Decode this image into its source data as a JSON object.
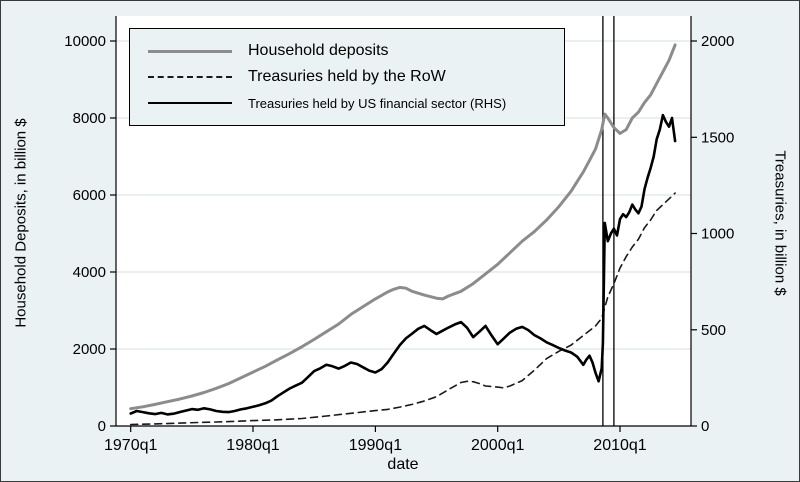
{
  "figure": {
    "background": "#eaf2f3",
    "border_color": "#3a3a3a"
  },
  "chart_data": {
    "type": "line",
    "title": "",
    "xlabel": "date",
    "ylabel_left": "Household Deposits, in billion $",
    "ylabel_right": "Treasuries, in billion $",
    "background": "#eaf2f3",
    "plot_background": "#ffffff",
    "grid_color": "#d4e2e5",
    "grid": "horizontal",
    "legend_position": "top-left",
    "xlim": [
      1968.8,
      2015.8
    ],
    "ylim_left": [
      0,
      10000
    ],
    "ylim_right": [
      0,
      2000
    ],
    "x_ticks": [
      {
        "v": 1970,
        "label": "1970q1"
      },
      {
        "v": 1980,
        "label": "1980q1"
      },
      {
        "v": 1990,
        "label": "1990q1"
      },
      {
        "v": 2000,
        "label": "2000q1"
      },
      {
        "v": 2010,
        "label": "2010q1"
      }
    ],
    "yticks_left": [
      0,
      2000,
      4000,
      6000,
      8000,
      10000
    ],
    "yticks_right": [
      0,
      500,
      1000,
      1500,
      2000
    ],
    "vlines": [
      2008.6,
      2009.5
    ],
    "vline_color": "#000000",
    "series": [
      {
        "name": "Household deposits",
        "axis": "left",
        "style": "solid",
        "color": "#8c8c8c",
        "width": 3,
        "points": [
          [
            1970,
            450
          ],
          [
            1971,
            500
          ],
          [
            1972,
            560
          ],
          [
            1973,
            630
          ],
          [
            1974,
            700
          ],
          [
            1975,
            780
          ],
          [
            1976,
            870
          ],
          [
            1977,
            980
          ],
          [
            1978,
            1100
          ],
          [
            1979,
            1250
          ],
          [
            1980,
            1400
          ],
          [
            1981,
            1550
          ],
          [
            1982,
            1720
          ],
          [
            1983,
            1880
          ],
          [
            1984,
            2060
          ],
          [
            1985,
            2250
          ],
          [
            1986,
            2450
          ],
          [
            1987,
            2650
          ],
          [
            1988,
            2900
          ],
          [
            1989,
            3100
          ],
          [
            1990,
            3300
          ],
          [
            1991,
            3480
          ],
          [
            1991.5,
            3550
          ],
          [
            1992,
            3600
          ],
          [
            1992.5,
            3580
          ],
          [
            1993,
            3500
          ],
          [
            1994,
            3400
          ],
          [
            1995,
            3320
          ],
          [
            1995.5,
            3300
          ],
          [
            1996,
            3380
          ],
          [
            1997,
            3500
          ],
          [
            1998,
            3700
          ],
          [
            1999,
            3950
          ],
          [
            2000,
            4200
          ],
          [
            2001,
            4500
          ],
          [
            2002,
            4800
          ],
          [
            2003,
            5050
          ],
          [
            2004,
            5350
          ],
          [
            2005,
            5700
          ],
          [
            2006,
            6100
          ],
          [
            2007,
            6600
          ],
          [
            2007.5,
            6900
          ],
          [
            2008,
            7200
          ],
          [
            2008.5,
            7700
          ],
          [
            2008.75,
            8100
          ],
          [
            2009,
            8000
          ],
          [
            2009.5,
            7750
          ],
          [
            2010,
            7600
          ],
          [
            2010.5,
            7700
          ],
          [
            2011,
            8000
          ],
          [
            2011.5,
            8150
          ],
          [
            2012,
            8400
          ],
          [
            2012.5,
            8600
          ],
          [
            2013,
            8900
          ],
          [
            2013.5,
            9200
          ],
          [
            2014,
            9500
          ],
          [
            2014.5,
            9900
          ]
        ]
      },
      {
        "name": "Treasuries held by the RoW",
        "axis": "left",
        "style": "dashed",
        "color": "#1a1a1a",
        "width": 1.6,
        "points": [
          [
            1970,
            40
          ],
          [
            1972,
            55
          ],
          [
            1974,
            75
          ],
          [
            1976,
            95
          ],
          [
            1978,
            115
          ],
          [
            1980,
            140
          ],
          [
            1982,
            160
          ],
          [
            1984,
            195
          ],
          [
            1986,
            260
          ],
          [
            1988,
            330
          ],
          [
            1990,
            400
          ],
          [
            1991,
            430
          ],
          [
            1992,
            490
          ],
          [
            1993,
            560
          ],
          [
            1994,
            650
          ],
          [
            1995,
            760
          ],
          [
            1996,
            950
          ],
          [
            1997,
            1130
          ],
          [
            1997.5,
            1160
          ],
          [
            1998,
            1150
          ],
          [
            1998.5,
            1100
          ],
          [
            1999,
            1040
          ],
          [
            2000,
            1010
          ],
          [
            2000.5,
            990
          ],
          [
            2001,
            1040
          ],
          [
            2002,
            1180
          ],
          [
            2003,
            1450
          ],
          [
            2004,
            1750
          ],
          [
            2005,
            1940
          ],
          [
            2006,
            2100
          ],
          [
            2007,
            2350
          ],
          [
            2008,
            2600
          ],
          [
            2008.5,
            2800
          ],
          [
            2009,
            3350
          ],
          [
            2009.5,
            3700
          ],
          [
            2010,
            4100
          ],
          [
            2010.5,
            4400
          ],
          [
            2011,
            4650
          ],
          [
            2011.5,
            4850
          ],
          [
            2012,
            5150
          ],
          [
            2012.5,
            5350
          ],
          [
            2013,
            5600
          ],
          [
            2013.5,
            5750
          ],
          [
            2014,
            5900
          ],
          [
            2014.5,
            6050
          ]
        ]
      },
      {
        "name": "Treasuries held by US financial sector (RHS)",
        "axis": "right",
        "style": "solid",
        "color": "#000000",
        "width": 2.6,
        "points": [
          [
            1970,
            65
          ],
          [
            1970.5,
            78
          ],
          [
            1971,
            72
          ],
          [
            1971.5,
            66
          ],
          [
            1972,
            62
          ],
          [
            1972.5,
            68
          ],
          [
            1973,
            60
          ],
          [
            1973.5,
            64
          ],
          [
            1974,
            72
          ],
          [
            1974.5,
            80
          ],
          [
            1975,
            88
          ],
          [
            1975.5,
            84
          ],
          [
            1976,
            92
          ],
          [
            1976.5,
            86
          ],
          [
            1977,
            78
          ],
          [
            1977.5,
            74
          ],
          [
            1978,
            72
          ],
          [
            1978.5,
            78
          ],
          [
            1979,
            86
          ],
          [
            1979.5,
            92
          ],
          [
            1980,
            100
          ],
          [
            1980.5,
            108
          ],
          [
            1981,
            118
          ],
          [
            1981.5,
            132
          ],
          [
            1982,
            155
          ],
          [
            1982.5,
            175
          ],
          [
            1983,
            195
          ],
          [
            1983.5,
            210
          ],
          [
            1984,
            225
          ],
          [
            1984.5,
            255
          ],
          [
            1985,
            285
          ],
          [
            1985.5,
            300
          ],
          [
            1986,
            318
          ],
          [
            1986.5,
            310
          ],
          [
            1987,
            298
          ],
          [
            1987.5,
            312
          ],
          [
            1988,
            330
          ],
          [
            1988.5,
            322
          ],
          [
            1989,
            305
          ],
          [
            1989.5,
            288
          ],
          [
            1990,
            278
          ],
          [
            1990.5,
            295
          ],
          [
            1991,
            330
          ],
          [
            1991.5,
            375
          ],
          [
            1992,
            420
          ],
          [
            1992.5,
            455
          ],
          [
            1993,
            480
          ],
          [
            1993.5,
            505
          ],
          [
            1994,
            520
          ],
          [
            1994.5,
            498
          ],
          [
            1995,
            478
          ],
          [
            1995.5,
            495
          ],
          [
            1996,
            512
          ],
          [
            1996.5,
            528
          ],
          [
            1997,
            540
          ],
          [
            1997.5,
            510
          ],
          [
            1998,
            462
          ],
          [
            1998.5,
            490
          ],
          [
            1999,
            520
          ],
          [
            1999.5,
            470
          ],
          [
            2000,
            425
          ],
          [
            2000.5,
            455
          ],
          [
            2001,
            485
          ],
          [
            2001.5,
            505
          ],
          [
            2002,
            515
          ],
          [
            2002.5,
            498
          ],
          [
            2003,
            472
          ],
          [
            2003.5,
            455
          ],
          [
            2004,
            435
          ],
          [
            2004.5,
            420
          ],
          [
            2005,
            405
          ],
          [
            2005.5,
            392
          ],
          [
            2006,
            382
          ],
          [
            2006.5,
            360
          ],
          [
            2007,
            318
          ],
          [
            2007.25,
            345
          ],
          [
            2007.5,
            365
          ],
          [
            2007.75,
            330
          ],
          [
            2008,
            275
          ],
          [
            2008.25,
            232
          ],
          [
            2008.5,
            300
          ],
          [
            2008.6,
            430
          ],
          [
            2008.75,
            1055
          ],
          [
            2009,
            960
          ],
          [
            2009.25,
            1000
          ],
          [
            2009.5,
            1025
          ],
          [
            2009.75,
            990
          ],
          [
            2010,
            1075
          ],
          [
            2010.25,
            1100
          ],
          [
            2010.5,
            1085
          ],
          [
            2010.75,
            1110
          ],
          [
            2011,
            1150
          ],
          [
            2011.25,
            1125
          ],
          [
            2011.5,
            1105
          ],
          [
            2011.75,
            1140
          ],
          [
            2012,
            1230
          ],
          [
            2012.25,
            1290
          ],
          [
            2012.5,
            1340
          ],
          [
            2012.75,
            1400
          ],
          [
            2013,
            1490
          ],
          [
            2013.25,
            1540
          ],
          [
            2013.5,
            1615
          ],
          [
            2013.75,
            1580
          ],
          [
            2014,
            1555
          ],
          [
            2014.25,
            1600
          ],
          [
            2014.5,
            1480
          ]
        ]
      }
    ]
  }
}
